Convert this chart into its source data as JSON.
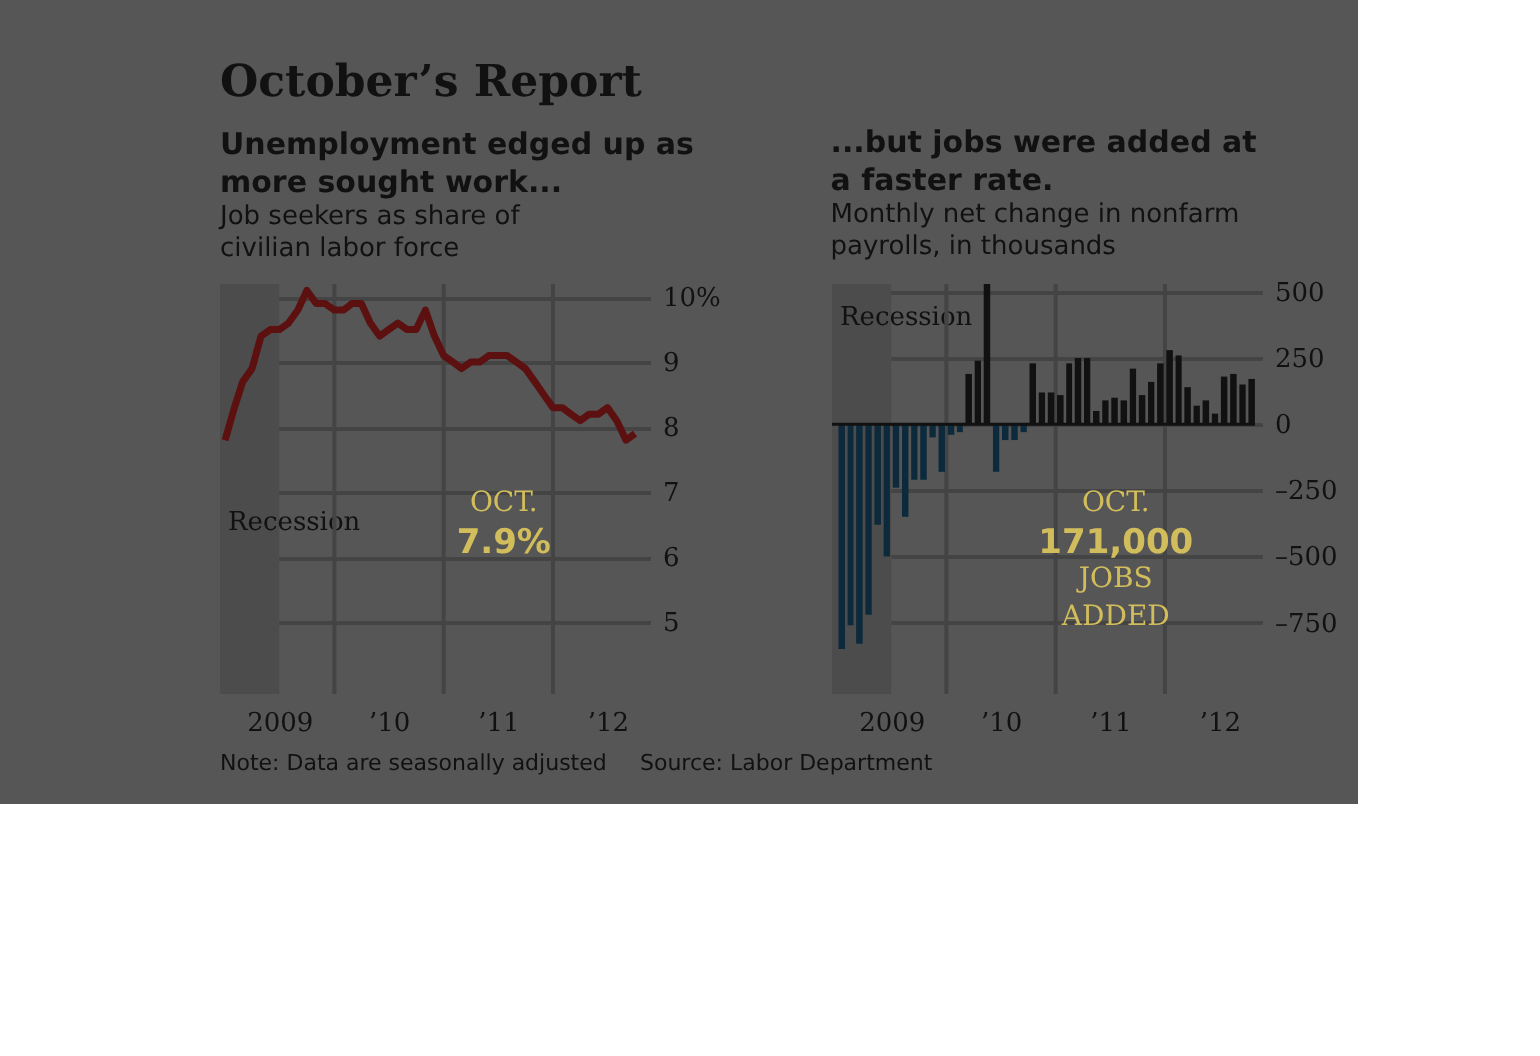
{
  "chart_data": [
    {
      "type": "other",
      "title": "October’s Report",
      "annotations": [
        "Note: Data are seasonally adjusted",
        "Source: Labor Department"
      ]
    },
    {
      "type": "line",
      "title": "Unemployment edged up as more sought work...",
      "subtitle": "Job seekers as share of civilian labor force",
      "x": [
        "2009-01",
        "2009-02",
        "2009-03",
        "2009-04",
        "2009-05",
        "2009-06",
        "2009-07",
        "2009-08",
        "2009-09",
        "2009-10",
        "2009-11",
        "2009-12",
        "2010-01",
        "2010-02",
        "2010-03",
        "2010-04",
        "2010-05",
        "2010-06",
        "2010-07",
        "2010-08",
        "2010-09",
        "2010-10",
        "2010-11",
        "2010-12",
        "2011-01",
        "2011-02",
        "2011-03",
        "2011-04",
        "2011-05",
        "2011-06",
        "2011-07",
        "2011-08",
        "2011-09",
        "2011-10",
        "2011-11",
        "2011-12",
        "2012-01",
        "2012-02",
        "2012-03",
        "2012-04",
        "2012-05",
        "2012-06",
        "2012-07",
        "2012-08",
        "2012-09",
        "2012-10"
      ],
      "series": [
        {
          "color": "#5c1010",
          "values": [
            7.8,
            8.3,
            8.7,
            8.9,
            9.4,
            9.5,
            9.5,
            9.6,
            9.8,
            10.1,
            9.9,
            9.9,
            9.8,
            9.8,
            9.9,
            9.9,
            9.6,
            9.4,
            9.5,
            9.6,
            9.5,
            9.5,
            9.8,
            9.4,
            9.1,
            9.0,
            8.9,
            9.0,
            9.0,
            9.1,
            9.1,
            9.1,
            9.0,
            8.9,
            8.7,
            8.5,
            8.3,
            8.3,
            8.2,
            8.1,
            8.2,
            8.2,
            8.3,
            8.1,
            7.8,
            7.9
          ]
        }
      ],
      "xlim": [
        "2008-12-15",
        "2012-11-20"
      ],
      "xticks": [
        {
          "value": "2009-07",
          "label": "2009"
        },
        {
          "value": "2010-01",
          "label": null
        },
        {
          "value": "2010-07",
          "label": "’10"
        },
        {
          "value": "2011-01",
          "label": null
        },
        {
          "value": "2011-07",
          "label": "’11"
        },
        {
          "value": "2012-01",
          "label": null
        },
        {
          "value": "2012-07",
          "label": "’12"
        }
      ],
      "ylim": [
        3.9,
        10.2
      ],
      "yticks": [
        5,
        6,
        7,
        8,
        9,
        {
          "value": 10,
          "label": "10%"
        }
      ],
      "grid": true,
      "marker": "none",
      "line_style": "solid",
      "bands": [
        {
          "axis": "x",
          "from": "2008-12-15",
          "to": "2009-07",
          "label": "Recession",
          "color": "#4c4c4c"
        }
      ],
      "annotations": [
        "OCT. 7.9%"
      ]
    },
    {
      "type": "bar",
      "title": "...but jobs were added at a faster rate.",
      "subtitle": "Monthly net change in nonfarm payrolls, in thousands",
      "x": [
        "2009-01",
        "2009-02",
        "2009-03",
        "2009-04",
        "2009-05",
        "2009-06",
        "2009-07",
        "2009-08",
        "2009-09",
        "2009-10",
        "2009-11",
        "2009-12",
        "2010-01",
        "2010-02",
        "2010-03",
        "2010-04",
        "2010-05",
        "2010-06",
        "2010-07",
        "2010-08",
        "2010-09",
        "2010-10",
        "2010-11",
        "2010-12",
        "2011-01",
        "2011-02",
        "2011-03",
        "2011-04",
        "2011-05",
        "2011-06",
        "2011-07",
        "2011-08",
        "2011-09",
        "2011-10",
        "2011-11",
        "2011-12",
        "2012-01",
        "2012-02",
        "2012-03",
        "2012-04",
        "2012-05",
        "2012-06",
        "2012-07",
        "2012-08",
        "2012-09",
        "2012-10"
      ],
      "values": [
        -850,
        -760,
        -830,
        -720,
        -380,
        -500,
        -240,
        -350,
        -210,
        -210,
        -50,
        -180,
        -40,
        -30,
        190,
        240,
        530,
        -180,
        -60,
        -60,
        -30,
        230,
        120,
        120,
        110,
        230,
        250,
        250,
        50,
        90,
        100,
        90,
        210,
        110,
        160,
        230,
        280,
        260,
        140,
        70,
        90,
        40,
        180,
        190,
        150,
        171
      ],
      "colors": [
        "#0c2a3c",
        "#0c2a3c",
        "#0c2a3c",
        "#0c2a3c",
        "#0c2a3c",
        "#0c2a3c",
        "#0c2a3c",
        "#0c2a3c",
        "#0c2a3c",
        "#0c2a3c",
        "#0c2a3c",
        "#0c2a3c",
        "#0c2a3c",
        "#0c2a3c",
        "#111111",
        "#111111",
        "#111111",
        "#0c2a3c",
        "#0c2a3c",
        "#0c2a3c",
        "#0c2a3c",
        "#111111",
        "#111111",
        "#111111",
        "#111111",
        "#111111",
        "#111111",
        "#111111",
        "#111111",
        "#111111",
        "#111111",
        "#111111",
        "#111111",
        "#111111",
        "#111111",
        "#111111",
        "#111111",
        "#111111",
        "#111111",
        "#111111",
        "#111111",
        "#111111",
        "#111111",
        "#111111",
        "#111111",
        "#111111"
      ],
      "xlim": [
        "2008-12-15",
        "2012-11-20"
      ],
      "xticks": [
        {
          "value": "2009-07",
          "label": "2009"
        },
        {
          "value": "2010-01",
          "label": null
        },
        {
          "value": "2010-07",
          "label": "’10"
        },
        {
          "value": "2011-01",
          "label": null
        },
        {
          "value": "2011-07",
          "label": "’11"
        },
        {
          "value": "2012-01",
          "label": null
        },
        {
          "value": "2012-07",
          "label": "’12"
        }
      ],
      "ylim": [
        -1020,
        530
      ],
      "yticks": [
        500,
        250,
        0,
        {
          "value": -250,
          "label": "–250"
        },
        {
          "value": -500,
          "label": "–500"
        },
        {
          "value": -750,
          "label": "–750"
        }
      ],
      "grid": true,
      "bands": [
        {
          "axis": "x",
          "from": "2008-12-15",
          "to": "2009-07",
          "label": "Recession",
          "color": "#4c4c4c"
        }
      ],
      "annotations": [
        "OCT. 171,000 JOBS ADDED"
      ]
    }
  ]
}
